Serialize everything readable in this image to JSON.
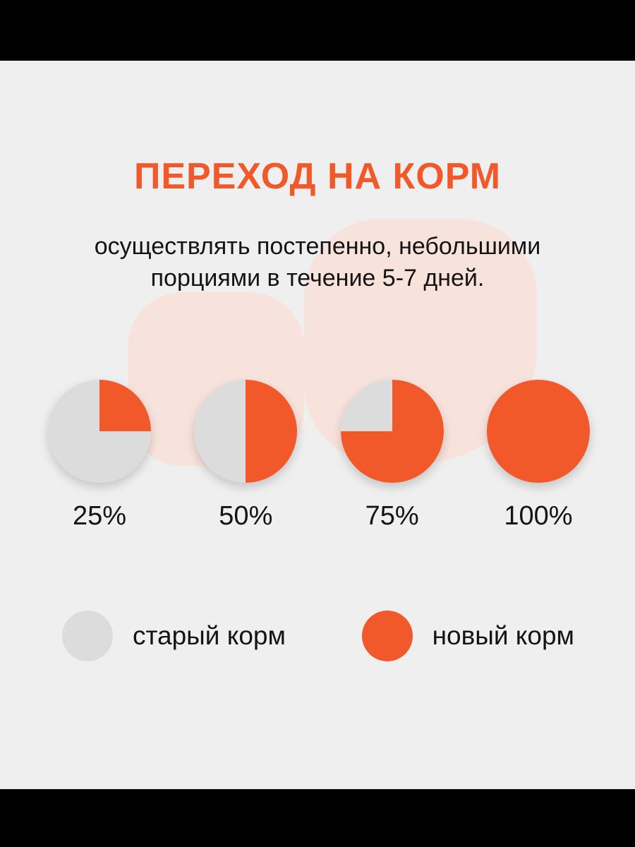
{
  "page": {
    "title": "ПЕРЕХОД НА КОРМ",
    "subtitle_line1": "осуществлять постепенно, небольшими",
    "subtitle_line2": "порциями в течение 5-7 дней."
  },
  "colors": {
    "accent_orange": "#f1592a",
    "old_food_gray": "#dcdcdc",
    "blob_pink": "#f8e3dc",
    "canvas_background": "#efefef",
    "letterbox_black": "#000000",
    "text_black": "#141414"
  },
  "chart_data": {
    "type": "pie",
    "title": "ПЕРЕХОД НА КОРМ",
    "subtitle": "осуществлять постепенно, небольшими порциями в течение 5-7 дней.",
    "pies": [
      {
        "label": "25%",
        "new_food_percent": 25,
        "old_food_percent": 75
      },
      {
        "label": "50%",
        "new_food_percent": 50,
        "old_food_percent": 50
      },
      {
        "label": "75%",
        "new_food_percent": 75,
        "old_food_percent": 25
      },
      {
        "label": "100%",
        "new_food_percent": 100,
        "old_food_percent": 0
      }
    ],
    "legend": [
      {
        "label": "старый корм",
        "color": "#dcdcdc"
      },
      {
        "label": "новый корм",
        "color": "#f1592a"
      }
    ],
    "layout_hints": {
      "wedge_start": "12 o'clock, clockwise",
      "legend_position": "bottom"
    }
  }
}
